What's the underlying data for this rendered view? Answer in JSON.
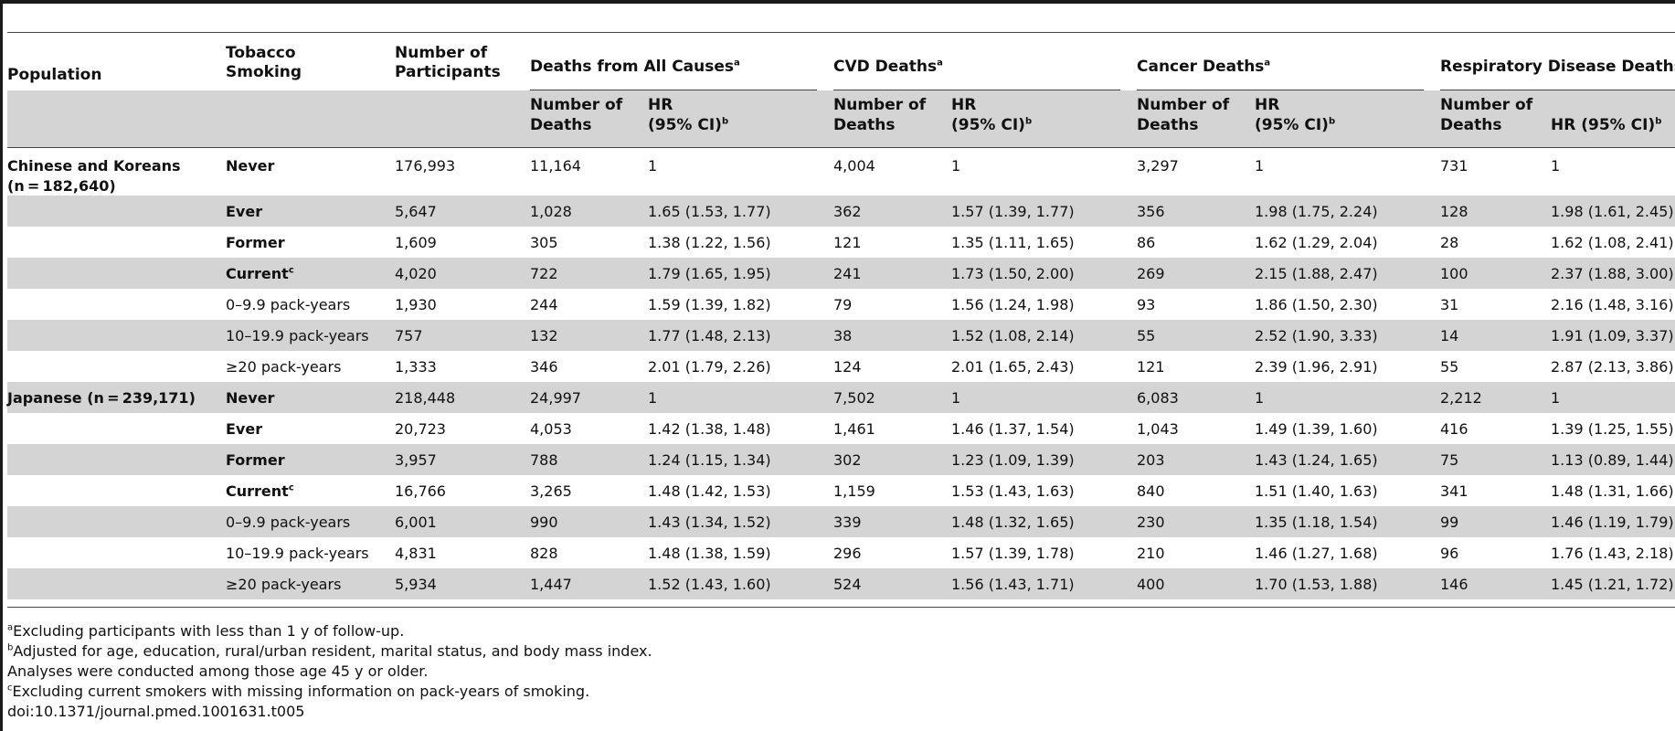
{
  "columns": {
    "population": "Population",
    "smoking_l1": "Tobacco",
    "smoking_l2": "Smoking",
    "participants_l1": "Number of",
    "participants_l2": "Participants",
    "groups": [
      {
        "name": "Deaths from All Causes",
        "sup": "a"
      },
      {
        "name": "CVD Deaths",
        "sup": "a"
      },
      {
        "name": "Cancer Deaths",
        "sup": "a"
      },
      {
        "name": "Respiratory Disease Deaths",
        "sup": "a"
      }
    ],
    "sub_deaths_l1": "Number of",
    "sub_deaths_l2": "Deaths",
    "sub_hr_l1": "HR",
    "sub_hr_l2": "(95% CI)",
    "sub_hr_one_line": "HR (95% CI)",
    "sub_hr_sup": "b"
  },
  "populations": [
    {
      "name_pre": "Chinese and Koreans",
      "name_n": "(n = 182,640)"
    },
    {
      "name_pre": "Japanese (",
      "name_n": "n = 239,171)"
    }
  ],
  "rows": [
    {
      "smoking": "Never",
      "sup": "",
      "bold": true,
      "participants": "176,993",
      "all_n": "11,164",
      "all_hr": "1",
      "cvd_n": "4,004",
      "cvd_hr": "1",
      "cancer_n": "3,297",
      "cancer_hr": "1",
      "resp_n": "731",
      "resp_hr": "1"
    },
    {
      "smoking": "Ever",
      "sup": "",
      "bold": true,
      "participants": "5,647",
      "all_n": "1,028",
      "all_hr": "1.65 (1.53, 1.77)",
      "cvd_n": "362",
      "cvd_hr": "1.57 (1.39, 1.77)",
      "cancer_n": "356",
      "cancer_hr": "1.98 (1.75, 2.24)",
      "resp_n": "128",
      "resp_hr": "1.98 (1.61, 2.45)"
    },
    {
      "smoking": "Former",
      "sup": "",
      "bold": true,
      "participants": "1,609",
      "all_n": "305",
      "all_hr": "1.38 (1.22, 1.56)",
      "cvd_n": "121",
      "cvd_hr": "1.35 (1.11, 1.65)",
      "cancer_n": "86",
      "cancer_hr": "1.62 (1.29, 2.04)",
      "resp_n": "28",
      "resp_hr": "1.62 (1.08, 2.41)"
    },
    {
      "smoking": "Current",
      "sup": "c",
      "bold": true,
      "participants": "4,020",
      "all_n": "722",
      "all_hr": "1.79 (1.65, 1.95)",
      "cvd_n": "241",
      "cvd_hr": "1.73 (1.50, 2.00)",
      "cancer_n": "269",
      "cancer_hr": "2.15 (1.88, 2.47)",
      "resp_n": "100",
      "resp_hr": "2.37 (1.88, 3.00)"
    },
    {
      "smoking": "0–9.9 pack-years",
      "sup": "",
      "bold": false,
      "participants": "1,930",
      "all_n": "244",
      "all_hr": "1.59 (1.39, 1.82)",
      "cvd_n": "79",
      "cvd_hr": "1.56 (1.24, 1.98)",
      "cancer_n": "93",
      "cancer_hr": "1.86 (1.50, 2.30)",
      "resp_n": "31",
      "resp_hr": "2.16 (1.48, 3.16)"
    },
    {
      "smoking": "10–19.9 pack-years",
      "sup": "",
      "bold": false,
      "participants": "757",
      "all_n": "132",
      "all_hr": "1.77 (1.48, 2.13)",
      "cvd_n": "38",
      "cvd_hr": "1.52 (1.08, 2.14)",
      "cancer_n": "55",
      "cancer_hr": "2.52 (1.90, 3.33)",
      "resp_n": "14",
      "resp_hr": "1.91 (1.09, 3.37)"
    },
    {
      "smoking": "≥20 pack-years",
      "sup": "",
      "bold": false,
      "participants": "1,333",
      "all_n": "346",
      "all_hr": "2.01 (1.79, 2.26)",
      "cvd_n": "124",
      "cvd_hr": "2.01 (1.65, 2.43)",
      "cancer_n": "121",
      "cancer_hr": "2.39 (1.96, 2.91)",
      "resp_n": "55",
      "resp_hr": "2.87 (2.13, 3.86)"
    },
    {
      "smoking": "Never",
      "sup": "",
      "bold": true,
      "participants": "218,448",
      "all_n": "24,997",
      "all_hr": "1",
      "cvd_n": "7,502",
      "cvd_hr": "1",
      "cancer_n": "6,083",
      "cancer_hr": "1",
      "resp_n": "2,212",
      "resp_hr": "1"
    },
    {
      "smoking": "Ever",
      "sup": "",
      "bold": true,
      "participants": "20,723",
      "all_n": "4,053",
      "all_hr": "1.42 (1.38, 1.48)",
      "cvd_n": "1,461",
      "cvd_hr": "1.46 (1.37, 1.54)",
      "cancer_n": "1,043",
      "cancer_hr": "1.49 (1.39, 1.60)",
      "resp_n": "416",
      "resp_hr": "1.39 (1.25, 1.55)"
    },
    {
      "smoking": "Former",
      "sup": "",
      "bold": true,
      "participants": "3,957",
      "all_n": "788",
      "all_hr": "1.24 (1.15, 1.34)",
      "cvd_n": "302",
      "cvd_hr": "1.23 (1.09, 1.39)",
      "cancer_n": "203",
      "cancer_hr": "1.43 (1.24, 1.65)",
      "resp_n": "75",
      "resp_hr": "1.13 (0.89, 1.44)"
    },
    {
      "smoking": "Current",
      "sup": "c",
      "bold": true,
      "participants": "16,766",
      "all_n": "3,265",
      "all_hr": "1.48 (1.42, 1.53)",
      "cvd_n": "1,159",
      "cvd_hr": "1.53 (1.43, 1.63)",
      "cancer_n": "840",
      "cancer_hr": "1.51 (1.40, 1.63)",
      "resp_n": "341",
      "resp_hr": "1.48 (1.31, 1.66)"
    },
    {
      "smoking": "0–9.9 pack-years",
      "sup": "",
      "bold": false,
      "participants": "6,001",
      "all_n": "990",
      "all_hr": "1.43 (1.34, 1.52)",
      "cvd_n": "339",
      "cvd_hr": "1.48 (1.32, 1.65)",
      "cancer_n": "230",
      "cancer_hr": "1.35 (1.18, 1.54)",
      "resp_n": "99",
      "resp_hr": "1.46 (1.19, 1.79)"
    },
    {
      "smoking": "10–19.9 pack-years",
      "sup": "",
      "bold": false,
      "participants": "4,831",
      "all_n": "828",
      "all_hr": "1.48 (1.38, 1.59)",
      "cvd_n": "296",
      "cvd_hr": "1.57 (1.39, 1.78)",
      "cancer_n": "210",
      "cancer_hr": "1.46 (1.27, 1.68)",
      "resp_n": "96",
      "resp_hr": "1.76 (1.43, 2.18)"
    },
    {
      "smoking": "≥20 pack-years",
      "sup": "",
      "bold": false,
      "participants": "5,934",
      "all_n": "1,447",
      "all_hr": "1.52 (1.43, 1.60)",
      "cvd_n": "524",
      "cvd_hr": "1.56 (1.43, 1.71)",
      "cancer_n": "400",
      "cancer_hr": "1.70 (1.53, 1.88)",
      "resp_n": "146",
      "resp_hr": "1.45 (1.21, 1.72)"
    }
  ],
  "footnotes": [
    {
      "sup": "a",
      "text": "Excluding participants with less than 1 y of follow-up."
    },
    {
      "sup": "b",
      "text": "Adjusted for age, education, rural/urban resident, marital status, and body mass index."
    },
    {
      "sup": "",
      "text": "Analyses were conducted among those age 45 y or older."
    },
    {
      "sup": "c",
      "text": "Excluding current smokers with missing information on pack-years of smoking."
    },
    {
      "sup": "",
      "text": "doi:10.1371/journal.pmed.1001631.t005"
    }
  ]
}
